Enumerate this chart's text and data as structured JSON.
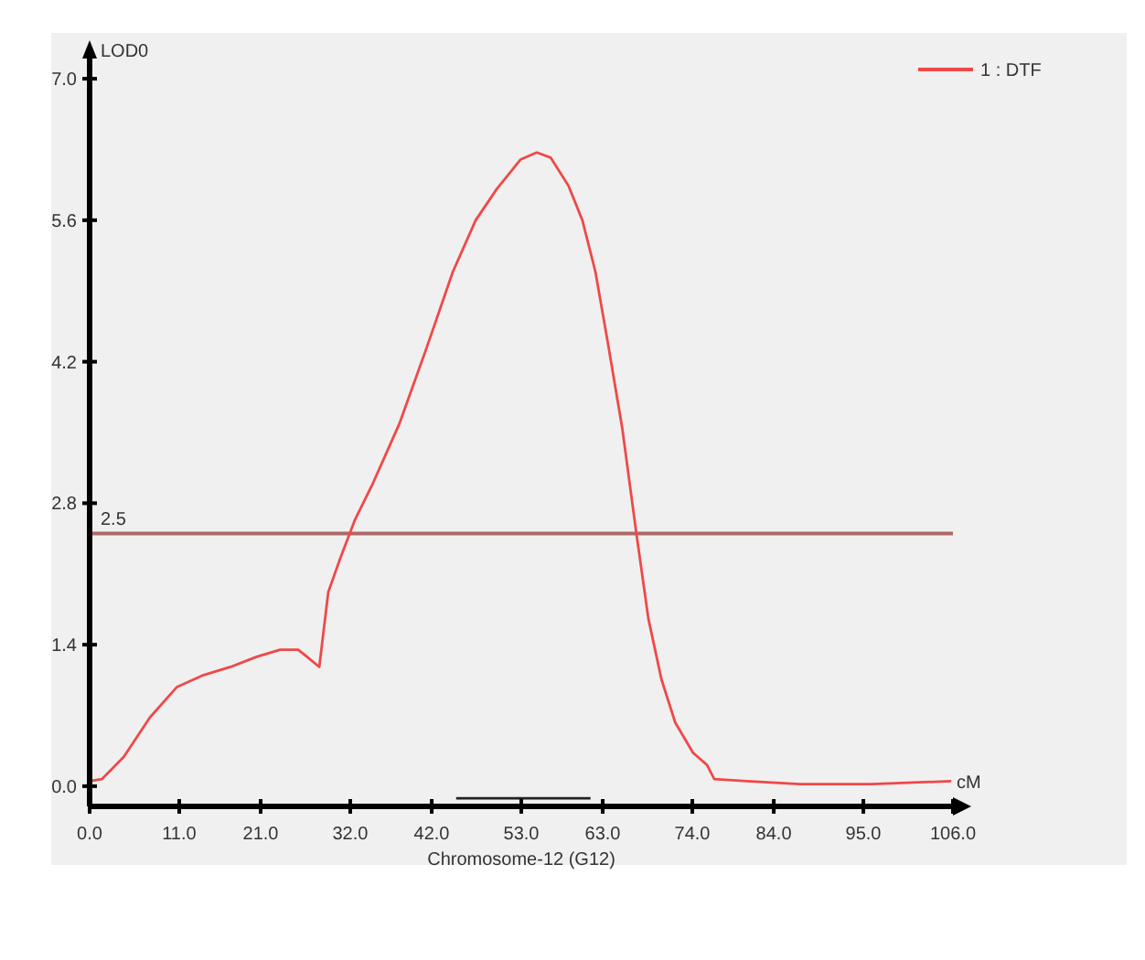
{
  "chart_data": {
    "type": "line",
    "xlabel": "Chromosome-12 (G12)",
    "ylabel": "LOD0",
    "annotations": [
      "cM"
    ],
    "xlim": [
      0,
      106
    ],
    "ylim": [
      -0.2,
      7.2
    ],
    "xticks": [
      {
        "value": 0,
        "label": "0.0"
      },
      {
        "value": 11,
        "label": "11.0"
      },
      {
        "value": 21,
        "label": "21.0"
      },
      {
        "value": 32,
        "label": "32.0"
      },
      {
        "value": 42,
        "label": "42.0"
      },
      {
        "value": 53,
        "label": "53.0"
      },
      {
        "value": 63,
        "label": "63.0"
      },
      {
        "value": 74,
        "label": "74.0"
      },
      {
        "value": 84,
        "label": "84.0"
      },
      {
        "value": 95,
        "label": "95.0"
      },
      {
        "value": 106,
        "label": "106.0"
      }
    ],
    "yticks": [
      {
        "value": 0,
        "label": "0.0"
      },
      1.4,
      2.8,
      4.2,
      5.6,
      {
        "value": 7,
        "label": "7.0"
      }
    ],
    "series": [
      {
        "name": "1 : DTF",
        "color": "#f04848",
        "x": [
          0,
          1.5,
          4.2,
          7.4,
          10.7,
          14,
          17.3,
          20.5,
          23.4,
          25.6,
          26.7,
          28.2,
          29.3,
          30.8,
          32.6,
          34.8,
          38,
          41.3,
          44.6,
          47.4,
          50,
          52.9,
          54.9,
          56.6,
          58.8,
          60.5,
          62.1,
          63.6,
          65.4,
          67.1,
          68.6,
          70.2,
          71.9,
          74.1,
          75.8,
          76.7,
          80.7,
          87.2,
          96,
          105.8
        ],
        "values": [
          0.05,
          0.07,
          0.29,
          0.68,
          0.98,
          1.1,
          1.18,
          1.28,
          1.35,
          1.35,
          1.28,
          1.18,
          1.92,
          2.26,
          2.64,
          3.0,
          3.58,
          4.32,
          5.09,
          5.6,
          5.91,
          6.2,
          6.27,
          6.22,
          5.94,
          5.6,
          5.09,
          4.4,
          3.54,
          2.52,
          1.66,
          1.06,
          0.63,
          0.33,
          0.21,
          0.07,
          0.05,
          0.02,
          0.02,
          0.05
        ]
      },
      {
        "type": "line",
        "color": "#222222",
        "x": [
          45,
          61.5
        ],
        "values": [
          -0.12,
          -0.12
        ]
      }
    ],
    "ref_lines": [
      {
        "axis": "y",
        "value": 2.5,
        "label": "2.5",
        "color": "#b06868"
      }
    ],
    "legend": "top right",
    "grid": false,
    "marker": "none",
    "line_style": "solid"
  }
}
